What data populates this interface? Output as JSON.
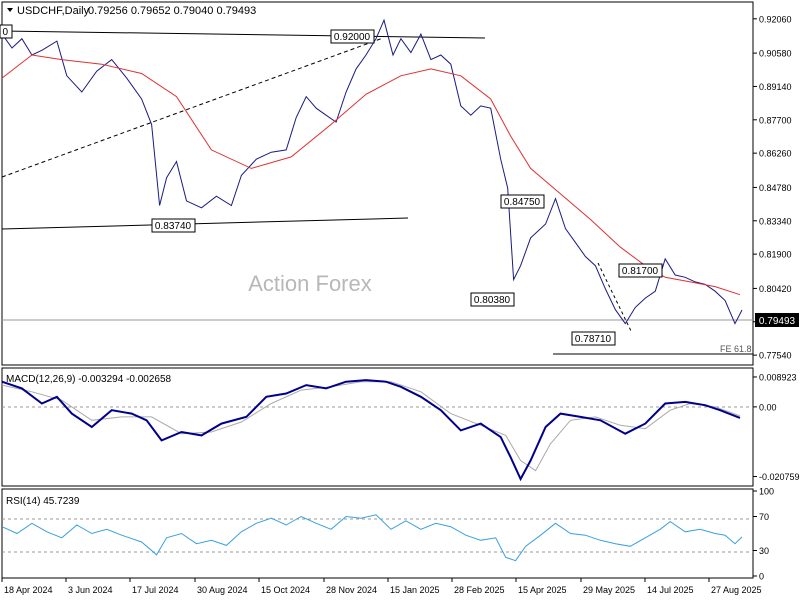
{
  "header": {
    "symbol": "USDCHF,Daily",
    "ohlc": "0.79256 0.79652 0.79040 0.79493"
  },
  "watermark": "Action Forex",
  "colors": {
    "price": "#1a1a80",
    "ma": "#e03030",
    "macd": "#00008b",
    "signal": "#aaaaaa",
    "rsi": "#3aa0e0",
    "frame": "#000000",
    "label_bg": "#ffffff"
  },
  "chart_data": [
    {
      "type": "line",
      "name": "price",
      "x_labels": [
        "18 Apr 2024",
        "3 Jun 2024",
        "17 Jul 2024",
        "30 Aug 2024",
        "15 Oct 2024",
        "28 Nov 2024",
        "15 Jan 2025",
        "28 Feb 2025",
        "15 Apr 2025",
        "29 May 2025",
        "14 Jul 2025",
        "27 Aug 2025"
      ],
      "y_ticks": [
        "0.92060",
        "0.90580",
        "0.89140",
        "0.87700",
        "0.86260",
        "0.84780",
        "0.83340",
        "0.81900",
        "0.80420",
        "0.78980",
        "0.77540"
      ],
      "ylim": [
        0.772,
        0.927
      ],
      "last_price": "0.79493",
      "annotations": [
        "0.92000",
        "0.83740",
        "0.84750",
        "0.80380",
        "0.78710",
        "0.81700",
        "FE 61.8"
      ],
      "series": [
        {
          "name": "",
          "values": [
            [
              0,
              0.914
            ],
            [
              10,
              0.908
            ],
            [
              20,
              0.912
            ],
            [
              30,
              0.905
            ],
            [
              40,
              0.907
            ],
            [
              55,
              0.911
            ],
            [
              65,
              0.896
            ],
            [
              80,
              0.889
            ],
            [
              95,
              0.898
            ],
            [
              110,
              0.903
            ],
            [
              125,
              0.895
            ],
            [
              140,
              0.886
            ],
            [
              150,
              0.875
            ],
            [
              158,
              0.84
            ],
            [
              165,
              0.852
            ],
            [
              175,
              0.859
            ],
            [
              185,
              0.842
            ],
            [
              200,
              0.839
            ],
            [
              215,
              0.844
            ],
            [
              230,
              0.84
            ],
            [
              240,
              0.853
            ],
            [
              255,
              0.86
            ],
            [
              270,
              0.863
            ],
            [
              285,
              0.864
            ],
            [
              295,
              0.878
            ],
            [
              305,
              0.887
            ],
            [
              315,
              0.882
            ],
            [
              325,
              0.879
            ],
            [
              335,
              0.876
            ],
            [
              345,
              0.889
            ],
            [
              355,
              0.899
            ],
            [
              365,
              0.905
            ],
            [
              375,
              0.912
            ],
            [
              383,
              0.92
            ],
            [
              392,
              0.905
            ],
            [
              400,
              0.912
            ],
            [
              410,
              0.906
            ],
            [
              420,
              0.914
            ],
            [
              430,
              0.903
            ],
            [
              440,
              0.905
            ],
            [
              450,
              0.901
            ],
            [
              460,
              0.883
            ],
            [
              470,
              0.879
            ],
            [
              480,
              0.883
            ],
            [
              490,
              0.882
            ],
            [
              500,
              0.86
            ],
            [
              507,
              0.8475
            ],
            [
              513,
              0.808
            ],
            [
              520,
              0.814
            ],
            [
              530,
              0.826
            ],
            [
              545,
              0.832
            ],
            [
              555,
              0.843
            ],
            [
              565,
              0.83
            ],
            [
              575,
              0.824
            ],
            [
              585,
              0.818
            ],
            [
              595,
              0.814
            ],
            [
              605,
              0.804
            ],
            [
              615,
              0.795
            ],
            [
              625,
              0.789
            ],
            [
              635,
              0.796
            ],
            [
              645,
              0.8
            ],
            [
              655,
              0.803
            ],
            [
              665,
              0.817
            ],
            [
              675,
              0.81
            ],
            [
              685,
              0.809
            ],
            [
              695,
              0.807
            ],
            [
              705,
              0.806
            ],
            [
              715,
              0.803
            ],
            [
              725,
              0.799
            ],
            [
              735,
              0.789
            ],
            [
              742,
              0.7949
            ]
          ]
        },
        {
          "name": "",
          "values": [
            [
              0,
              0.895
            ],
            [
              30,
              0.905
            ],
            [
              60,
              0.903
            ],
            [
              100,
              0.901
            ],
            [
              140,
              0.897
            ],
            [
              175,
              0.887
            ],
            [
              210,
              0.864
            ],
            [
              250,
              0.856
            ],
            [
              290,
              0.861
            ],
            [
              330,
              0.875
            ],
            [
              365,
              0.888
            ],
            [
              400,
              0.896
            ],
            [
              430,
              0.899
            ],
            [
              460,
              0.896
            ],
            [
              490,
              0.886
            ],
            [
              510,
              0.87
            ],
            [
              530,
              0.856
            ],
            [
              560,
              0.845
            ],
            [
              590,
              0.834
            ],
            [
              620,
              0.822
            ],
            [
              645,
              0.814
            ],
            [
              665,
              0.809
            ],
            [
              690,
              0.807
            ],
            [
              715,
              0.805
            ],
            [
              740,
              0.8015
            ]
          ]
        }
      ]
    },
    {
      "type": "line",
      "name": "macd",
      "title": "MACD(12,26,9) -0.003294 -0.002658",
      "y_ticks": [
        "0.008923",
        "0.00",
        "-0.020759"
      ],
      "ylim": [
        -0.023,
        0.011
      ],
      "series": [
        {
          "name": "",
          "values": [
            [
              0,
              0.0075
            ],
            [
              20,
              0.0055
            ],
            [
              40,
              0.001
            ],
            [
              55,
              0.003
            ],
            [
              70,
              -0.002
            ],
            [
              90,
              -0.006
            ],
            [
              110,
              -0.001
            ],
            [
              130,
              -0.002
            ],
            [
              145,
              -0.004
            ],
            [
              160,
              -0.01
            ],
            [
              180,
              -0.0075
            ],
            [
              200,
              -0.0085
            ],
            [
              220,
              -0.005
            ],
            [
              245,
              -0.003
            ],
            [
              265,
              0.003
            ],
            [
              285,
              0.004
            ],
            [
              305,
              0.0065
            ],
            [
              325,
              0.0055
            ],
            [
              345,
              0.0075
            ],
            [
              365,
              0.008
            ],
            [
              385,
              0.0075
            ],
            [
              400,
              0.006
            ],
            [
              420,
              0.003
            ],
            [
              440,
              -0.001
            ],
            [
              460,
              -0.007
            ],
            [
              480,
              -0.005
            ],
            [
              500,
              -0.009
            ],
            [
              510,
              -0.015
            ],
            [
              520,
              -0.0215
            ],
            [
              530,
              -0.016
            ],
            [
              545,
              -0.006
            ],
            [
              560,
              -0.002
            ],
            [
              580,
              -0.003
            ],
            [
              600,
              -0.004
            ],
            [
              625,
              -0.008
            ],
            [
              645,
              -0.005
            ],
            [
              665,
              0.001
            ],
            [
              685,
              0.0015
            ],
            [
              705,
              0.0005
            ],
            [
              720,
              -0.001
            ],
            [
              740,
              -0.0033
            ]
          ]
        },
        {
          "name": "",
          "values": [
            [
              0,
              0.0065
            ],
            [
              30,
              0.0045
            ],
            [
              60,
              0.002
            ],
            [
              90,
              -0.004
            ],
            [
              120,
              -0.003
            ],
            [
              150,
              -0.003
            ],
            [
              180,
              -0.008
            ],
            [
              210,
              -0.0075
            ],
            [
              240,
              -0.0045
            ],
            [
              270,
              0.001
            ],
            [
              300,
              0.005
            ],
            [
              330,
              0.006
            ],
            [
              360,
              0.0075
            ],
            [
              390,
              0.0075
            ],
            [
              420,
              0.0045
            ],
            [
              450,
              -0.002
            ],
            [
              480,
              -0.0055
            ],
            [
              505,
              -0.0085
            ],
            [
              520,
              -0.016
            ],
            [
              535,
              -0.019
            ],
            [
              550,
              -0.011
            ],
            [
              570,
              -0.004
            ],
            [
              595,
              -0.003
            ],
            [
              620,
              -0.0055
            ],
            [
              645,
              -0.0065
            ],
            [
              670,
              -0.001
            ],
            [
              690,
              0.001
            ],
            [
              715,
              0.0
            ],
            [
              740,
              -0.0027
            ]
          ]
        }
      ]
    },
    {
      "type": "line",
      "name": "rsi",
      "title": "RSI(14) 45.7239",
      "y_ticks": [
        "100",
        "70",
        "30",
        "0"
      ],
      "ylim": [
        0,
        100
      ],
      "series": [
        {
          "name": "",
          "values": [
            [
              0,
              58
            ],
            [
              15,
              50
            ],
            [
              30,
              62
            ],
            [
              45,
              52
            ],
            [
              60,
              45
            ],
            [
              75,
              60
            ],
            [
              90,
              50
            ],
            [
              105,
              55
            ],
            [
              120,
              48
            ],
            [
              140,
              40
            ],
            [
              155,
              25
            ],
            [
              165,
              45
            ],
            [
              180,
              50
            ],
            [
              195,
              38
            ],
            [
              210,
              42
            ],
            [
              225,
              36
            ],
            [
              240,
              52
            ],
            [
              255,
              62
            ],
            [
              270,
              68
            ],
            [
              285,
              60
            ],
            [
              300,
              70
            ],
            [
              315,
              62
            ],
            [
              330,
              55
            ],
            [
              345,
              70
            ],
            [
              360,
              68
            ],
            [
              375,
              72
            ],
            [
              390,
              55
            ],
            [
              405,
              65
            ],
            [
              420,
              55
            ],
            [
              435,
              62
            ],
            [
              450,
              58
            ],
            [
              465,
              48
            ],
            [
              480,
              42
            ],
            [
              495,
              45
            ],
            [
              505,
              22
            ],
            [
              515,
              18
            ],
            [
              525,
              35
            ],
            [
              540,
              48
            ],
            [
              555,
              62
            ],
            [
              570,
              50
            ],
            [
              585,
              48
            ],
            [
              600,
              42
            ],
            [
              615,
              38
            ],
            [
              630,
              35
            ],
            [
              645,
              45
            ],
            [
              660,
              55
            ],
            [
              670,
              64
            ],
            [
              685,
              52
            ],
            [
              700,
              55
            ],
            [
              715,
              50
            ],
            [
              725,
              48
            ],
            [
              735,
              38
            ],
            [
              742,
              46
            ]
          ]
        }
      ]
    }
  ]
}
